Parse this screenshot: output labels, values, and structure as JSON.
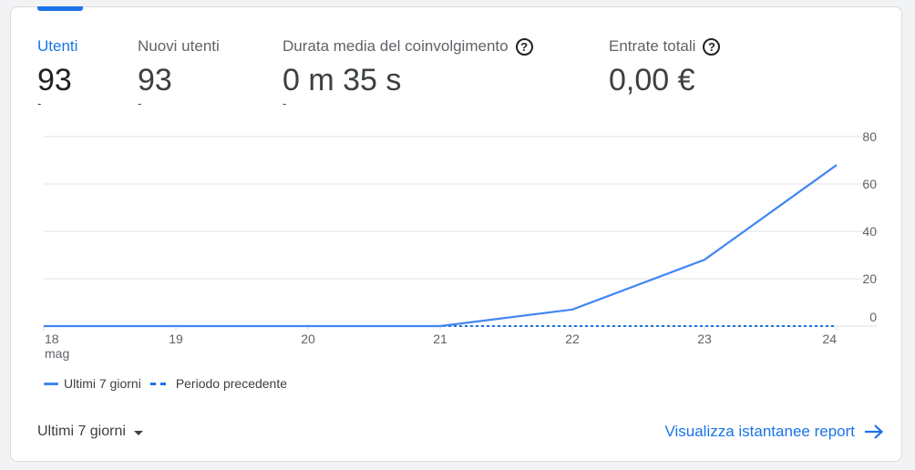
{
  "metrics": [
    {
      "label": "Utenti",
      "value": "93",
      "delta": "-",
      "help": false,
      "active": true
    },
    {
      "label": "Nuovi utenti",
      "value": "93",
      "delta": "-",
      "help": false,
      "active": false
    },
    {
      "label": "Durata media del coinvolgimento",
      "value": "0 m 35 s",
      "delta": "-",
      "help": true,
      "active": false
    },
    {
      "label": "Entrate totali",
      "value": "0,00 €",
      "delta": "",
      "help": true,
      "active": false
    }
  ],
  "help_glyph": "?",
  "colors": {
    "primary": "#1a73e8",
    "series": "#4285f4",
    "grid": "#e0e0e0"
  },
  "chart_data": {
    "type": "line",
    "categories": [
      "18",
      "19",
      "20",
      "21",
      "22",
      "23",
      "24"
    ],
    "first_category_sublabel": "mag",
    "series": [
      {
        "name": "Ultimi 7 giorni",
        "values": [
          0,
          0,
          0,
          0,
          7,
          28,
          68
        ],
        "style": "solid"
      },
      {
        "name": "Periodo precedente",
        "values": [
          0,
          0,
          0,
          0,
          0,
          0,
          0
        ],
        "style": "dashed"
      }
    ],
    "y_ticks": [
      0,
      20,
      40,
      60,
      80
    ],
    "ylim": [
      0,
      80
    ],
    "y_axis_side": "right",
    "grid": true,
    "legend": "bottom-left"
  },
  "footer": {
    "range_label": "Ultimi 7 giorni",
    "report_link": "Visualizza istantanee report"
  }
}
